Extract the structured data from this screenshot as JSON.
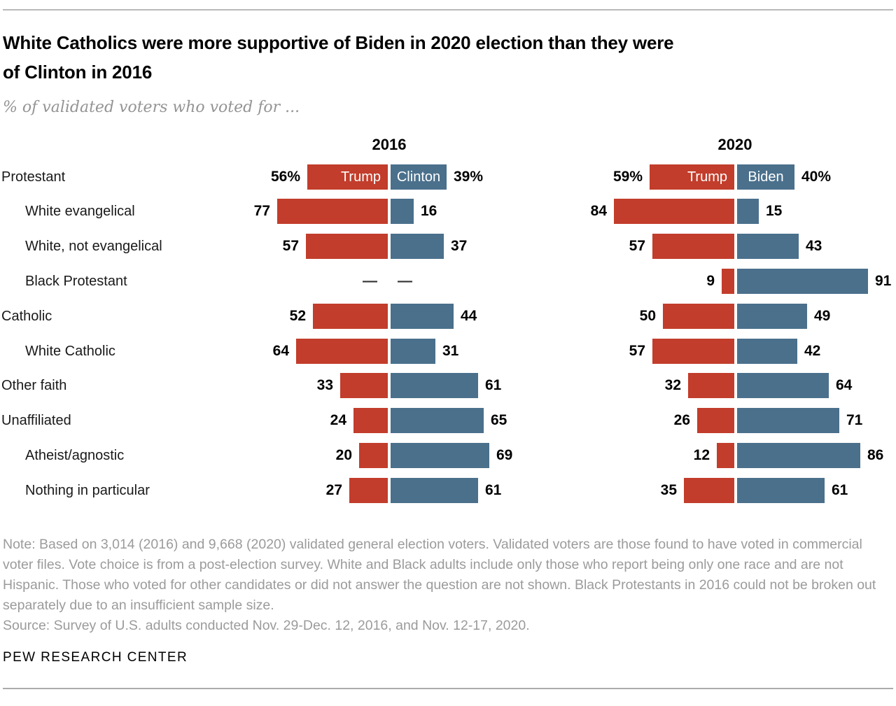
{
  "header": {
    "title_lines": [
      "White Catholics were more supportive of Biden in 2020 election than they were",
      "of Clinton in 2016"
    ],
    "subtitle": "% of validated voters who voted for ..."
  },
  "colors": {
    "trump_red": "#c23d2b",
    "dem_blue": "#4a708c"
  },
  "chart_data": {
    "type": "bar",
    "variant": "paired diverging horizontal bars, two year panels",
    "unit": "%",
    "value_range": [
      0,
      100
    ],
    "grid": false,
    "legend_position": "inside first row bars",
    "panels": [
      {
        "year": "2016",
        "left_series": "Trump",
        "right_series": "Clinton"
      },
      {
        "year": "2020",
        "left_series": "Trump",
        "right_series": "Biden"
      }
    ],
    "missing_value_marker": "—",
    "rows": [
      {
        "label": "Protestant",
        "indent": false,
        "pct_suffix": true,
        "show_series_labels": true,
        "v2016": {
          "trump": 56,
          "dem": 39
        },
        "v2020": {
          "trump": 59,
          "dem": 40
        }
      },
      {
        "label": "White evangelical",
        "indent": true,
        "pct_suffix": false,
        "show_series_labels": false,
        "v2016": {
          "trump": 77,
          "dem": 16
        },
        "v2020": {
          "trump": 84,
          "dem": 15
        }
      },
      {
        "label": "White, not evangelical",
        "indent": true,
        "pct_suffix": false,
        "show_series_labels": false,
        "v2016": {
          "trump": 57,
          "dem": 37
        },
        "v2020": {
          "trump": 57,
          "dem": 43
        }
      },
      {
        "label": "Black Protestant",
        "indent": true,
        "pct_suffix": false,
        "show_series_labels": false,
        "v2016": {
          "trump": null,
          "dem": null
        },
        "v2020": {
          "trump": 9,
          "dem": 91
        }
      },
      {
        "label": "Catholic",
        "indent": false,
        "pct_suffix": false,
        "show_series_labels": false,
        "v2016": {
          "trump": 52,
          "dem": 44
        },
        "v2020": {
          "trump": 50,
          "dem": 49
        }
      },
      {
        "label": "White Catholic",
        "indent": true,
        "pct_suffix": false,
        "show_series_labels": false,
        "v2016": {
          "trump": 64,
          "dem": 31
        },
        "v2020": {
          "trump": 57,
          "dem": 42
        }
      },
      {
        "label": "Other faith",
        "indent": false,
        "pct_suffix": false,
        "show_series_labels": false,
        "v2016": {
          "trump": 33,
          "dem": 61
        },
        "v2020": {
          "trump": 32,
          "dem": 64
        }
      },
      {
        "label": "Unaffiliated",
        "indent": false,
        "pct_suffix": false,
        "show_series_labels": false,
        "v2016": {
          "trump": 24,
          "dem": 65
        },
        "v2020": {
          "trump": 26,
          "dem": 71
        }
      },
      {
        "label": "Atheist/agnostic",
        "indent": true,
        "pct_suffix": false,
        "show_series_labels": false,
        "v2016": {
          "trump": 20,
          "dem": 69
        },
        "v2020": {
          "trump": 12,
          "dem": 86
        }
      },
      {
        "label": "Nothing in particular",
        "indent": true,
        "pct_suffix": false,
        "show_series_labels": false,
        "v2016": {
          "trump": 27,
          "dem": 61
        },
        "v2020": {
          "trump": 35,
          "dem": 61
        }
      }
    ]
  },
  "footer": {
    "note": "Note: Based on 3,014 (2016) and 9,668 (2020) validated general election voters. Validated voters are those found to have voted in commercial voter files. Vote choice is from a post-election survey. White and Black adults include only those who report being only one race and are not Hispanic. Those who voted for other candidates or did not answer the question are not shown. Black Protestants in 2016 could not be broken out separately due to an insufficient sample size.",
    "source": "Source: Survey of U.S. adults conducted Nov. 29-Dec. 12, 2016, and Nov. 12-17, 2020.",
    "brand": "PEW RESEARCH CENTER"
  }
}
